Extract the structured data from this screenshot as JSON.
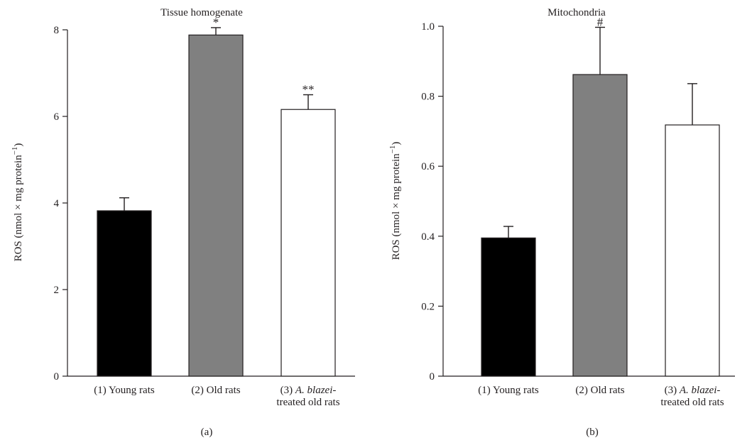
{
  "chart_data": [
    {
      "type": "bar",
      "title": "Tissue homogenate",
      "panel_label": "(a)",
      "ylabel": "ROS (nmol × mg protein⁻¹)",
      "ylim": [
        0,
        8
      ],
      "yticks": [
        "0",
        "2",
        "4",
        "6",
        "8"
      ],
      "categories": [
        [
          "(1) Young rats"
        ],
        [
          "(2) Old rats"
        ],
        [
          "(3) A. blazei-",
          "treated old rats"
        ]
      ],
      "values": [
        3.82,
        7.88,
        6.16
      ],
      "errors": [
        0.3,
        0.17,
        0.34
      ],
      "annotations": [
        "",
        "*",
        "**"
      ],
      "colors": [
        "#000000",
        "#808080",
        "#ffffff"
      ]
    },
    {
      "type": "bar",
      "title": "Mitochondria",
      "panel_label": "(b)",
      "ylabel": "ROS (nmol × mg protein⁻¹)",
      "ylim": [
        0,
        1.0
      ],
      "yticks": [
        "0",
        "0.2",
        "0.4",
        "0.6",
        "0.8",
        "1.0"
      ],
      "categories": [
        [
          "(1) Young rats"
        ],
        [
          "(2) Old rats"
        ],
        [
          "(3) A. blazei-",
          "treated old rats"
        ]
      ],
      "values": [
        0.395,
        0.862,
        0.718
      ],
      "errors": [
        0.033,
        0.135,
        0.118
      ],
      "annotations": [
        "",
        "#",
        ""
      ],
      "colors": [
        "#000000",
        "#808080",
        "#ffffff"
      ]
    }
  ]
}
